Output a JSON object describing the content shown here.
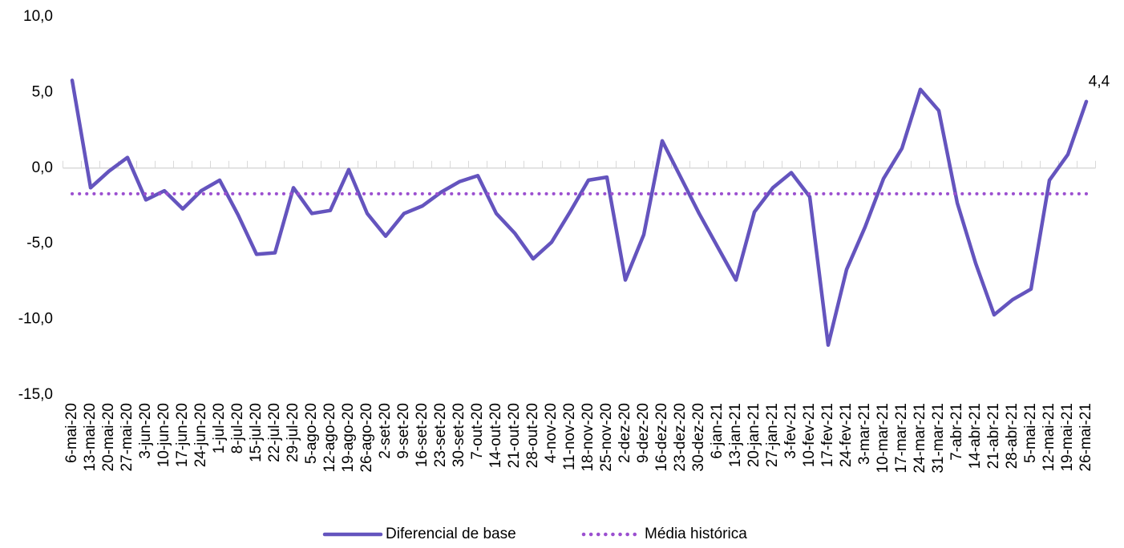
{
  "chart_data": {
    "type": "line",
    "categories": [
      "6-mai-20",
      "13-mai-20",
      "20-mai-20",
      "27-mai-20",
      "3-jun-20",
      "10-jun-20",
      "17-jun-20",
      "24-jun-20",
      "1-jul-20",
      "8-jul-20",
      "15-jul-20",
      "22-jul-20",
      "29-jul-20",
      "5-ago-20",
      "12-ago-20",
      "19-ago-20",
      "26-ago-20",
      "2-set-20",
      "9-set-20",
      "16-set-20",
      "23-set-20",
      "30-set-20",
      "7-out-20",
      "14-out-20",
      "21-out-20",
      "28-out-20",
      "4-nov-20",
      "11-nov-20",
      "18-nov-20",
      "25-nov-20",
      "2-dez-20",
      "9-dez-20",
      "16-dez-20",
      "23-dez-20",
      "30-dez-20",
      "6-jan-21",
      "13-jan-21",
      "20-jan-21",
      "27-jan-21",
      "3-fev-21",
      "10-fev-21",
      "17-fev-21",
      "24-fev-21",
      "3-mar-21",
      "10-mar-21",
      "17-mar-21",
      "24-mar-21",
      "31-mar-21",
      "7-abr-21",
      "14-abr-21",
      "21-abr-21",
      "28-abr-21",
      "5-mai-21",
      "12-mai-21",
      "19-mai-21",
      "26-mai-21"
    ],
    "series": [
      {
        "name": "Diferencial de base",
        "color": "#6454be",
        "style": "solid",
        "values": [
          5.8,
          -1.3,
          -0.2,
          0.7,
          -2.1,
          -1.5,
          -2.7,
          -1.5,
          -0.8,
          -3.1,
          -5.7,
          -5.6,
          -1.3,
          -3.0,
          -2.8,
          -0.1,
          -3.0,
          -4.5,
          -3.0,
          -2.5,
          -1.6,
          -0.9,
          -0.5,
          -3.0,
          -4.3,
          -6.0,
          -4.9,
          -2.9,
          -0.8,
          -0.6,
          -7.4,
          -4.4,
          1.8,
          -0.6,
          -3.0,
          -5.2,
          -7.4,
          -2.9,
          -1.3,
          -0.3,
          -1.9,
          -11.7,
          -6.7,
          -3.9,
          -0.7,
          1.3,
          5.2,
          3.8,
          -2.3,
          -6.3,
          -9.7,
          -8.7,
          -8.0,
          -0.8,
          0.9,
          4.4
        ],
        "value_labels": [
          null,
          null,
          null,
          null,
          null,
          null,
          null,
          null,
          null,
          null,
          null,
          null,
          null,
          null,
          null,
          null,
          null,
          null,
          null,
          null,
          null,
          null,
          null,
          null,
          null,
          null,
          null,
          null,
          null,
          null,
          null,
          null,
          null,
          null,
          null,
          null,
          null,
          null,
          null,
          null,
          null,
          null,
          null,
          null,
          null,
          null,
          null,
          null,
          null,
          null,
          null,
          null,
          null,
          null,
          null,
          "4,4"
        ]
      },
      {
        "name": "Média histórica",
        "color": "#9b4fd0",
        "style": "dotted",
        "values": [
          -1.7,
          -1.7,
          -1.7,
          -1.7,
          -1.7,
          -1.7,
          -1.7,
          -1.7,
          -1.7,
          -1.7,
          -1.7,
          -1.7,
          -1.7,
          -1.7,
          -1.7,
          -1.7,
          -1.7,
          -1.7,
          -1.7,
          -1.7,
          -1.7,
          -1.7,
          -1.7,
          -1.7,
          -1.7,
          -1.7,
          -1.7,
          -1.7,
          -1.7,
          -1.7,
          -1.7,
          -1.7,
          -1.7,
          -1.7,
          -1.7,
          -1.7,
          -1.7,
          -1.7,
          -1.7,
          -1.7,
          -1.7,
          -1.7,
          -1.7,
          -1.7,
          -1.7,
          -1.7,
          -1.7,
          -1.7,
          -1.7,
          -1.7,
          -1.7,
          -1.7,
          -1.7,
          -1.7,
          -1.7,
          -1.7
        ]
      }
    ],
    "ylim": [
      -15,
      10
    ],
    "yticks": [
      {
        "value": -15,
        "label": "-15,0"
      },
      {
        "value": -10,
        "label": "-10,0"
      },
      {
        "value": -5,
        "label": "-5,0"
      },
      {
        "value": 0,
        "label": "0,0"
      },
      {
        "value": 5,
        "label": "5,0"
      },
      {
        "value": 10,
        "label": "10,0"
      }
    ],
    "legend": "bottom",
    "grid": false
  }
}
